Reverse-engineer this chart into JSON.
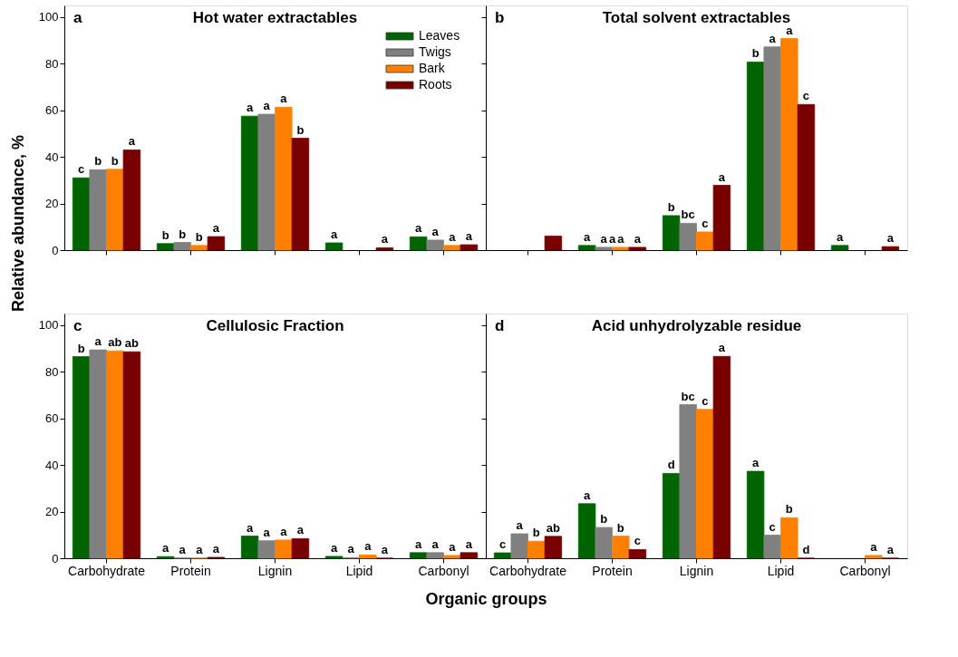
{
  "chart_data": [
    {
      "type": "bar",
      "title": "Hot water extractables",
      "annotations": [
        "a"
      ],
      "ylabel": "Relative abundance, %",
      "categories": [
        "Carbohydrate",
        "Protein",
        "Lignin",
        "Lipid",
        "Carbonyl"
      ],
      "ylim": [
        0,
        105
      ],
      "yticks": [
        0,
        20,
        40,
        60,
        80,
        100
      ],
      "tick_labels": "y",
      "legend": "top right",
      "grid": false,
      "series": [
        {
          "name": "Leaves",
          "color": "#006400",
          "values": [
            31,
            2.8,
            57.5,
            3.1,
            5.7
          ],
          "value_labels": [
            "c",
            "b",
            "a",
            "a",
            "a"
          ]
        },
        {
          "name": "Twigs",
          "color": "#808080",
          "values": [
            34.5,
            3.3,
            58.3,
            null,
            4.3
          ],
          "value_labels": [
            "b",
            "b",
            "a",
            null,
            "a"
          ]
        },
        {
          "name": "Bark",
          "color": "#ff8000",
          "values": [
            34.7,
            2,
            61.3,
            null,
            2
          ],
          "value_labels": [
            "b",
            "b",
            "a",
            null,
            "a"
          ]
        },
        {
          "name": "Roots",
          "color": "#780000",
          "values": [
            43,
            5.8,
            48,
            1,
            2.3
          ],
          "value_labels": [
            "a",
            "a",
            "b",
            "a",
            "a"
          ]
        }
      ]
    },
    {
      "type": "bar",
      "title": "Total solvent extractables",
      "annotations": [
        "b",
        {
          "text": "a",
          "x": "Protein",
          "y": 1.2
        }
      ],
      "categories": [
        "Carbohydrate",
        "Protein",
        "Lignin",
        "Lipid",
        "Carbonyl"
      ],
      "ylim": [
        0,
        105
      ],
      "yticks": [
        0,
        20,
        40,
        60,
        80,
        100
      ],
      "tick_labels": false,
      "grid": false,
      "series": [
        {
          "name": "Leaves",
          "color": "#006400",
          "values": [
            null,
            2,
            14.8,
            80.7,
            2
          ],
          "value_labels": [
            null,
            "a",
            "b",
            "b",
            "a"
          ]
        },
        {
          "name": "Twigs",
          "color": "#808080",
          "values": [
            null,
            1.2,
            11.5,
            87.2,
            null
          ],
          "value_labels": [
            null,
            "a",
            "bc",
            "a",
            null
          ]
        },
        {
          "name": "Bark",
          "color": "#ff8000",
          "values": [
            null,
            1.2,
            7.8,
            90.8,
            null
          ],
          "value_labels": [
            null,
            "a",
            "c",
            "a",
            null
          ]
        },
        {
          "name": "Roots",
          "color": "#780000",
          "values": [
            6,
            1.2,
            27.8,
            62.5,
            1.5
          ],
          "value_labels": [
            null,
            "a",
            "a",
            "c",
            "a"
          ]
        }
      ]
    },
    {
      "type": "bar",
      "title": "Cellulosic Fraction",
      "annotations": [
        "c"
      ],
      "categories": [
        "Carbohydrate",
        "Protein",
        "Lignin",
        "Lipid",
        "Carbonyl"
      ],
      "ylim": [
        0,
        105
      ],
      "yticks": [
        0,
        20,
        40,
        60,
        80,
        100
      ],
      "grid": false,
      "series": [
        {
          "name": "Leaves",
          "color": "#006400",
          "values": [
            86.5,
            0.7,
            9.5,
            0.8,
            2.4
          ],
          "value_labels": [
            "b",
            "a",
            "a",
            "a",
            "a"
          ]
        },
        {
          "name": "Twigs",
          "color": "#808080",
          "values": [
            89.4,
            0.1,
            7.5,
            0.2,
            2.4
          ],
          "value_labels": [
            "a",
            "a",
            "a",
            "a",
            "a"
          ]
        },
        {
          "name": "Bark",
          "color": "#ff8000",
          "values": [
            89,
            0.1,
            7.8,
            1.4,
            1.2
          ],
          "value_labels": [
            "ab",
            "a",
            "a",
            "a",
            "a"
          ]
        },
        {
          "name": "Roots",
          "color": "#780000",
          "values": [
            88.6,
            0.4,
            8.4,
            0,
            2.4
          ],
          "value_labels": [
            "ab",
            "a",
            "a",
            "a",
            "a"
          ]
        }
      ]
    },
    {
      "type": "bar",
      "title": "Acid unhydrolyzable residue",
      "annotations": [
        "d"
      ],
      "xlabel": "Organic groups",
      "categories": [
        "Carbohydrate",
        "Protein",
        "Lignin",
        "Lipid",
        "Carbonyl"
      ],
      "ylim": [
        0,
        105
      ],
      "yticks": [
        0,
        20,
        40,
        60,
        80,
        100
      ],
      "tick_labels": "x",
      "grid": false,
      "series": [
        {
          "name": "Leaves",
          "color": "#006400",
          "values": [
            2.3,
            23.4,
            36.4,
            37.3,
            null
          ],
          "value_labels": [
            "c",
            "a",
            "d",
            "a",
            null
          ]
        },
        {
          "name": "Twigs",
          "color": "#808080",
          "values": [
            10.5,
            13.2,
            65.9,
            9.9,
            null
          ],
          "value_labels": [
            "a",
            "b",
            "bc",
            "c",
            null
          ]
        },
        {
          "name": "Bark",
          "color": "#ff8000",
          "values": [
            7.3,
            9.5,
            63.9,
            17.4,
            1.2
          ],
          "value_labels": [
            "b",
            "b",
            "c",
            "b",
            "a"
          ]
        },
        {
          "name": "Roots",
          "color": "#780000",
          "values": [
            9.4,
            3.7,
            86.6,
            0,
            0
          ],
          "value_labels": [
            "ab",
            "c",
            "a",
            "d",
            "a"
          ]
        }
      ]
    }
  ]
}
